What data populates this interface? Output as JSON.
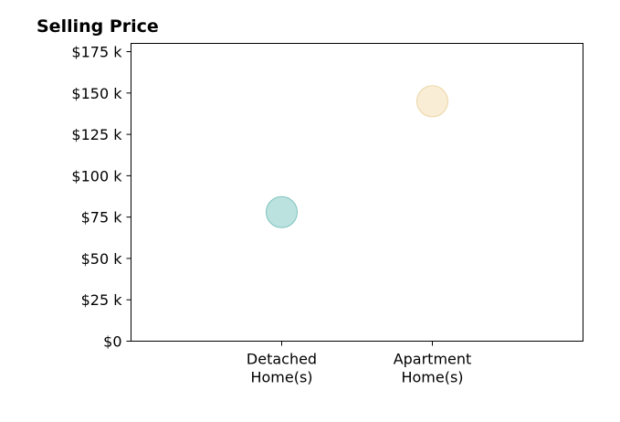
{
  "chart_data": {
    "type": "scatter",
    "title": "Selling Price",
    "xlabel": "",
    "ylabel": "",
    "categories": [
      [
        "Detached",
        "Home(s)"
      ],
      [
        "Apartment",
        "Home(s)"
      ]
    ],
    "y_ticks": [
      {
        "value": 0,
        "label": "$0"
      },
      {
        "value": 25000,
        "label": "$25 k"
      },
      {
        "value": 50000,
        "label": "$50 k"
      },
      {
        "value": 75000,
        "label": "$75 k"
      },
      {
        "value": 100000,
        "label": "$100 k"
      },
      {
        "value": 125000,
        "label": "$125 k"
      },
      {
        "value": 150000,
        "label": "$150 k"
      },
      {
        "value": 175000,
        "label": "$175 k"
      }
    ],
    "ylim": [
      0,
      180000
    ],
    "xlim": [
      -1,
      2
    ],
    "grid": false,
    "legend": "none",
    "series": [
      {
        "points": [
          {
            "category_index": 0,
            "y": 78000,
            "color": "#9fd6d2",
            "edge_color": "#7cc3be"
          },
          {
            "category_index": 1,
            "y": 145000,
            "color": "#f7e6c4",
            "edge_color": "#ecd6a6"
          }
        ]
      }
    ]
  }
}
